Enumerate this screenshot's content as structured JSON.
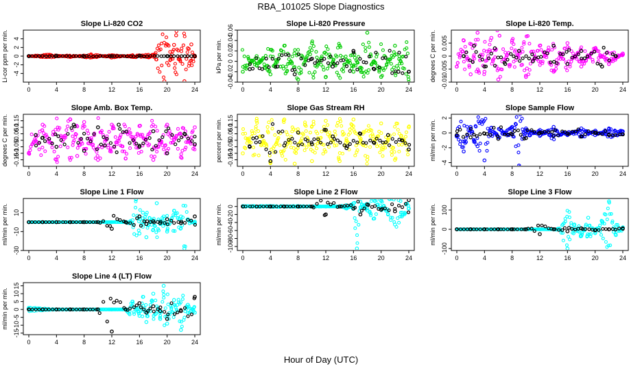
{
  "figure": {
    "title": "RBA_101025  Slope Diagnostics",
    "xlabel": "Hour of Day (UTC)"
  },
  "chart_data": [
    {
      "type": "scatter",
      "title": "Slope Li-820 CO2",
      "ylabel": "Li-cor ppm per min.",
      "color": "#ff0000",
      "xlim": [
        0,
        24
      ],
      "xticks": [
        0,
        4,
        8,
        12,
        16,
        20,
        24
      ],
      "ylim": [
        -6,
        6
      ],
      "yticks": [
        -4,
        -2,
        0,
        2,
        4
      ],
      "x": [
        0,
        3,
        6,
        9,
        12,
        15,
        18,
        19.6,
        20.5,
        21,
        21.3,
        21.8,
        22.5,
        23,
        23.5,
        24
      ],
      "y": [
        0,
        0.3,
        -0.2,
        0.4,
        -0.3,
        0.2,
        0.3,
        -5.8,
        -0.8,
        2.6,
        4.8,
        -0.7,
        -5.8,
        1.8,
        2.7,
        0.1
      ],
      "ref_series": {
        "color": "#000000",
        "x": [
          0,
          4,
          8,
          12,
          16,
          20,
          24
        ],
        "y": [
          0,
          0.1,
          -0.1,
          0,
          0.1,
          0,
          0
        ]
      }
    },
    {
      "type": "scatter",
      "title": "Slope Li-820 Pressure",
      "ylabel": "kPa per min.",
      "color": "#00cc00",
      "xlim": [
        0,
        24
      ],
      "xticks": [
        0,
        4,
        8,
        12,
        16,
        20,
        24
      ],
      "ylim": [
        -0.04,
        0.06
      ],
      "yticks": [
        -0.04,
        -0.02,
        0,
        0.02,
        0.04,
        0.06
      ],
      "x": [
        0,
        2,
        4,
        6,
        8,
        10,
        12,
        14,
        16,
        18,
        18.5,
        20,
        22,
        24
      ],
      "y": [
        -0.02,
        0.01,
        -0.025,
        0.03,
        -0.035,
        0.035,
        -0.03,
        0.03,
        -0.02,
        0.055,
        0.01,
        -0.03,
        0.03,
        -0.04
      ],
      "ref_series": {
        "color": "#000000",
        "x": [
          1,
          5,
          7.5,
          10,
          13,
          16,
          19,
          22.5,
          24
        ],
        "y": [
          -0.015,
          -0.01,
          -0.025,
          0.005,
          -0.01,
          0.02,
          -0.015,
          -0.02,
          -0.02
        ]
      }
    },
    {
      "type": "scatter",
      "title": "Slope Li-820 Temp.",
      "ylabel": "degrees C per min.",
      "color": "#ff00ff",
      "xlim": [
        0,
        24
      ],
      "xticks": [
        0,
        4,
        8,
        12,
        16,
        20,
        24
      ],
      "ylim": [
        -0.01,
        0.01
      ],
      "yticks": [
        -0.01,
        -0.005,
        0,
        0.005
      ],
      "x": [
        0,
        1,
        2,
        3,
        4,
        5,
        6,
        8,
        10,
        12,
        14,
        16,
        18,
        20,
        22,
        24
      ],
      "y": [
        -0.004,
        0.006,
        -0.007,
        0.009,
        -0.006,
        0.007,
        -0.009,
        0.006,
        -0.008,
        0.004,
        -0.006,
        0.005,
        -0.004,
        0.003,
        -0.003,
        0.001
      ],
      "ref_series": {
        "color": "#000000",
        "x": [
          1,
          2.5,
          4,
          5.5,
          7,
          9,
          11,
          14,
          16,
          18,
          21,
          23
        ],
        "y": [
          0,
          0.004,
          -0.004,
          0.003,
          -0.003,
          0.002,
          -0.002,
          0.004,
          -0.003,
          0.002,
          -0.004,
          0
        ]
      }
    },
    {
      "type": "scatter",
      "title": "Slope Amb. Box Temp.",
      "ylabel": "degrees C per min.",
      "color": "#ff00ff",
      "xlim": [
        0,
        24
      ],
      "xticks": [
        0,
        4,
        8,
        12,
        16,
        20,
        24
      ],
      "ylim": [
        -0.2,
        0.2
      ],
      "yticks": [
        -0.15,
        -0.1,
        -0.05,
        0,
        0.05,
        0.1,
        0.15
      ],
      "x": [
        0,
        2,
        4,
        6,
        7,
        8,
        10,
        12,
        14,
        16,
        18,
        20,
        22,
        24
      ],
      "y": [
        -0.1,
        0.12,
        -0.15,
        0.16,
        -0.12,
        0.14,
        -0.15,
        0.12,
        -0.14,
        0.11,
        -0.15,
        0.12,
        -0.13,
        0.1
      ],
      "ref_series": {
        "color": "#000000",
        "x": [
          1,
          2,
          4,
          6.5,
          8,
          10,
          11,
          13,
          16,
          18,
          20,
          22.5,
          24
        ],
        "y": [
          0.04,
          0.02,
          -0.05,
          0.12,
          -0.08,
          0.1,
          -0.04,
          0.12,
          -0.05,
          0.07,
          -0.1,
          0.05,
          -0.03
        ]
      }
    },
    {
      "type": "scatter",
      "title": "Slope Gas Stream RH",
      "ylabel": "percent per min.",
      "color": "#ffff00",
      "xlim": [
        0,
        24
      ],
      "xticks": [
        0,
        4,
        8,
        12,
        16,
        20,
        24
      ],
      "ylim": [
        -0.2,
        0.2
      ],
      "yticks": [
        -0.15,
        -0.1,
        -0.05,
        0,
        0.05,
        0.1,
        0.15
      ],
      "x": [
        0,
        2,
        4,
        6,
        7.5,
        9,
        10,
        12,
        14,
        16,
        18,
        20,
        22,
        24
      ],
      "y": [
        -0.1,
        0.15,
        -0.17,
        0.16,
        -0.18,
        0.12,
        -0.16,
        0.15,
        -0.16,
        0.16,
        -0.15,
        0.13,
        -0.15,
        0.1
      ],
      "ref_series": {
        "color": "#000000",
        "x": [
          1,
          2,
          4,
          6,
          8,
          10,
          12,
          13,
          15,
          17,
          19,
          21,
          23,
          24
        ],
        "y": [
          -0.05,
          0.02,
          -0.16,
          -0.04,
          0.06,
          -0.03,
          0.08,
          0.03,
          -0.06,
          0.05,
          -0.02,
          0.04,
          0,
          -0.07
        ]
      }
    },
    {
      "type": "scatter",
      "title": "Slope Sample Flow",
      "ylabel": "ml/min per min.",
      "color": "#0000ff",
      "xlim": [
        0,
        24
      ],
      "xticks": [
        0,
        4,
        8,
        12,
        16,
        20,
        24
      ],
      "ylim": [
        -4.5,
        2.5
      ],
      "yticks": [
        -4,
        -2,
        0,
        2
      ],
      "x": [
        0,
        1,
        2,
        2.5,
        3,
        4,
        5,
        6,
        8,
        9,
        9.5,
        10,
        12,
        14,
        16,
        18,
        20,
        22,
        24
      ],
      "y": [
        -0.5,
        -2.5,
        0.8,
        -1.2,
        -1.8,
        -3.7,
        0.7,
        -0.6,
        0.8,
        -4.4,
        -0.5,
        0.6,
        -0.4,
        0.8,
        -0.3,
        0.6,
        -0.3,
        0.5,
        0.2
      ],
      "ref_series": {
        "color": "#000000",
        "x": [
          0,
          2,
          4,
          6,
          8,
          10,
          12,
          14,
          16,
          18,
          20,
          22,
          24
        ],
        "y": [
          -0.3,
          -0.6,
          -0.1,
          -0.8,
          -0.2,
          -0.7,
          0,
          -0.4,
          -0.1,
          -0.5,
          0,
          -0.3,
          -0.2
        ]
      }
    },
    {
      "type": "scatter",
      "title": "Slope Line 1 Flow",
      "ylabel": "ml/min per min.",
      "color": "#00ffff",
      "xlim": [
        0,
        24
      ],
      "xticks": [
        0,
        4,
        8,
        12,
        16,
        20,
        24
      ],
      "ylim": [
        -30,
        25
      ],
      "yticks": [
        -30,
        -10,
        10
      ],
      "x": [
        0,
        4,
        8,
        12,
        14,
        15,
        15.5,
        16,
        16.5,
        17,
        17.5,
        18,
        18.5,
        19,
        19.5,
        20,
        21,
        22,
        22.5,
        23,
        24
      ],
      "y": [
        0,
        0,
        0,
        0,
        0,
        2,
        24,
        -12,
        10,
        -16,
        4,
        -8,
        20,
        -2,
        6,
        -10,
        12,
        6,
        -28,
        3,
        -1
      ],
      "ref_series": {
        "color": "#000000",
        "x": [
          0,
          2,
          4,
          6,
          8,
          10,
          12,
          14,
          16,
          17,
          18,
          19,
          20,
          22,
          24
        ],
        "y": [
          0,
          0,
          0,
          0,
          0,
          0,
          -7,
          0,
          6,
          -2,
          1,
          -1,
          3,
          -1,
          6
        ]
      }
    },
    {
      "type": "scatter",
      "title": "Slope Line 2 Flow",
      "ylabel": "ml/min per min.",
      "color": "#00ffff",
      "xlim": [
        0,
        24
      ],
      "xticks": [
        0,
        4,
        8,
        12,
        16,
        20,
        24
      ],
      "ylim": [
        -110,
        20
      ],
      "yticks": [
        -100,
        -80,
        -60,
        -40,
        -20,
        0
      ],
      "x": [
        0,
        4,
        8,
        12,
        14,
        15,
        16,
        16.5,
        17,
        18,
        19,
        20,
        21,
        22,
        23,
        24
      ],
      "y": [
        1,
        1,
        1,
        0,
        0,
        -5,
        8,
        -105,
        12,
        -10,
        -30,
        15,
        -20,
        -45,
        -25,
        -5
      ],
      "ref_series": {
        "color": "#000000",
        "x": [
          0,
          2,
          4,
          6,
          8,
          10,
          12,
          14,
          16,
          17,
          18,
          20,
          22,
          24
        ],
        "y": [
          0,
          0,
          0,
          0,
          0,
          0,
          -20,
          0,
          -5,
          -20,
          5,
          -8,
          -12,
          16
        ]
      }
    },
    {
      "type": "scatter",
      "title": "Slope Line 3 Flow",
      "ylabel": "ml/min per min.",
      "color": "#00ffff",
      "xlim": [
        0,
        24
      ],
      "xticks": [
        0,
        4,
        8,
        12,
        16,
        20,
        24
      ],
      "ylim": [
        -110,
        160
      ],
      "yticks": [
        -100,
        0,
        100
      ],
      "x": [
        0,
        4,
        8,
        12,
        14,
        15,
        16,
        17,
        18,
        19,
        20,
        21,
        22,
        23,
        24
      ],
      "y": [
        0,
        0,
        0,
        0,
        0,
        -5,
        -100,
        25,
        -35,
        60,
        -20,
        40,
        145,
        -30,
        10
      ],
      "ref_series": {
        "color": "#000000",
        "x": [
          0,
          2,
          4,
          6,
          8,
          10,
          12,
          14,
          16,
          18,
          20,
          22,
          24
        ],
        "y": [
          0,
          0,
          0,
          0,
          0,
          0,
          -25,
          0,
          -10,
          5,
          -5,
          0,
          5
        ]
      }
    },
    {
      "type": "scatter",
      "title": "Slope Line 4 (LT) Flow",
      "ylabel": "ml/min per min.",
      "color": "#00ffff",
      "xlim": [
        0,
        24
      ],
      "xticks": [
        0,
        4,
        8,
        12,
        16,
        20,
        24
      ],
      "ylim": [
        -16,
        17
      ],
      "yticks": [
        -15,
        -10,
        -5,
        0,
        5,
        10,
        15
      ],
      "x": [
        0,
        4,
        8,
        12,
        14,
        15,
        16,
        16.5,
        17,
        18,
        19,
        19.5,
        20,
        21,
        22,
        23,
        24
      ],
      "y": [
        1,
        0,
        0,
        0,
        0,
        5,
        -4,
        8,
        -8,
        10,
        -6,
        15,
        -9,
        6,
        -13,
        3,
        -2
      ],
      "ref_series": {
        "color": "#000000",
        "x": [
          0,
          2,
          4,
          6,
          8,
          10,
          12,
          14,
          16,
          17,
          18,
          19,
          20,
          22,
          24
        ],
        "y": [
          0,
          0,
          0,
          0,
          0,
          0,
          -14,
          0,
          4,
          -2,
          2,
          -1,
          -6,
          -1,
          8
        ]
      }
    }
  ]
}
